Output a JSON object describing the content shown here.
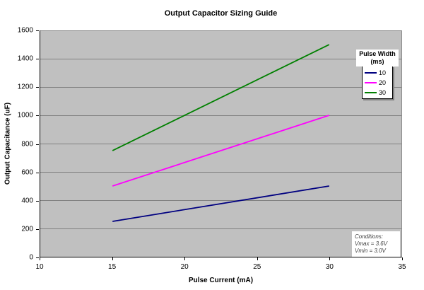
{
  "chart_data": {
    "type": "line",
    "title": "Output Capacitor Sizing Guide",
    "xlabel": "Pulse Current (mA)",
    "ylabel": "Output Capacitance (uF)",
    "xlim": [
      10,
      35
    ],
    "ylim": [
      0,
      1600
    ],
    "x_ticks": [
      10,
      15,
      20,
      25,
      30,
      35
    ],
    "y_ticks": [
      0,
      200,
      400,
      600,
      800,
      1000,
      1200,
      1400,
      1600
    ],
    "grid": "horizontal gridlines only",
    "plot_background": "#c0c0c0",
    "gridline_color": "#808080",
    "markers": "none",
    "x": [
      15,
      30
    ],
    "series": [
      {
        "name": "10",
        "color": "#000080",
        "values": [
          250,
          500
        ]
      },
      {
        "name": "20",
        "color": "#ff00ff",
        "values": [
          500,
          1000
        ]
      },
      {
        "name": "30",
        "color": "#008000",
        "values": [
          750,
          1500
        ]
      }
    ],
    "legend_position": "inside upper right"
  },
  "legend": {
    "title_line1": "Pulse Width",
    "title_line2": "(ms)",
    "items": [
      {
        "label": "10",
        "color": "#000080"
      },
      {
        "label": "20",
        "color": "#ff00ff"
      },
      {
        "label": "30",
        "color": "#008000"
      }
    ]
  },
  "annotation": {
    "lines": [
      "Conditions:",
      "Vmax = 3.6V",
      "Vmin = 3.0V"
    ]
  }
}
